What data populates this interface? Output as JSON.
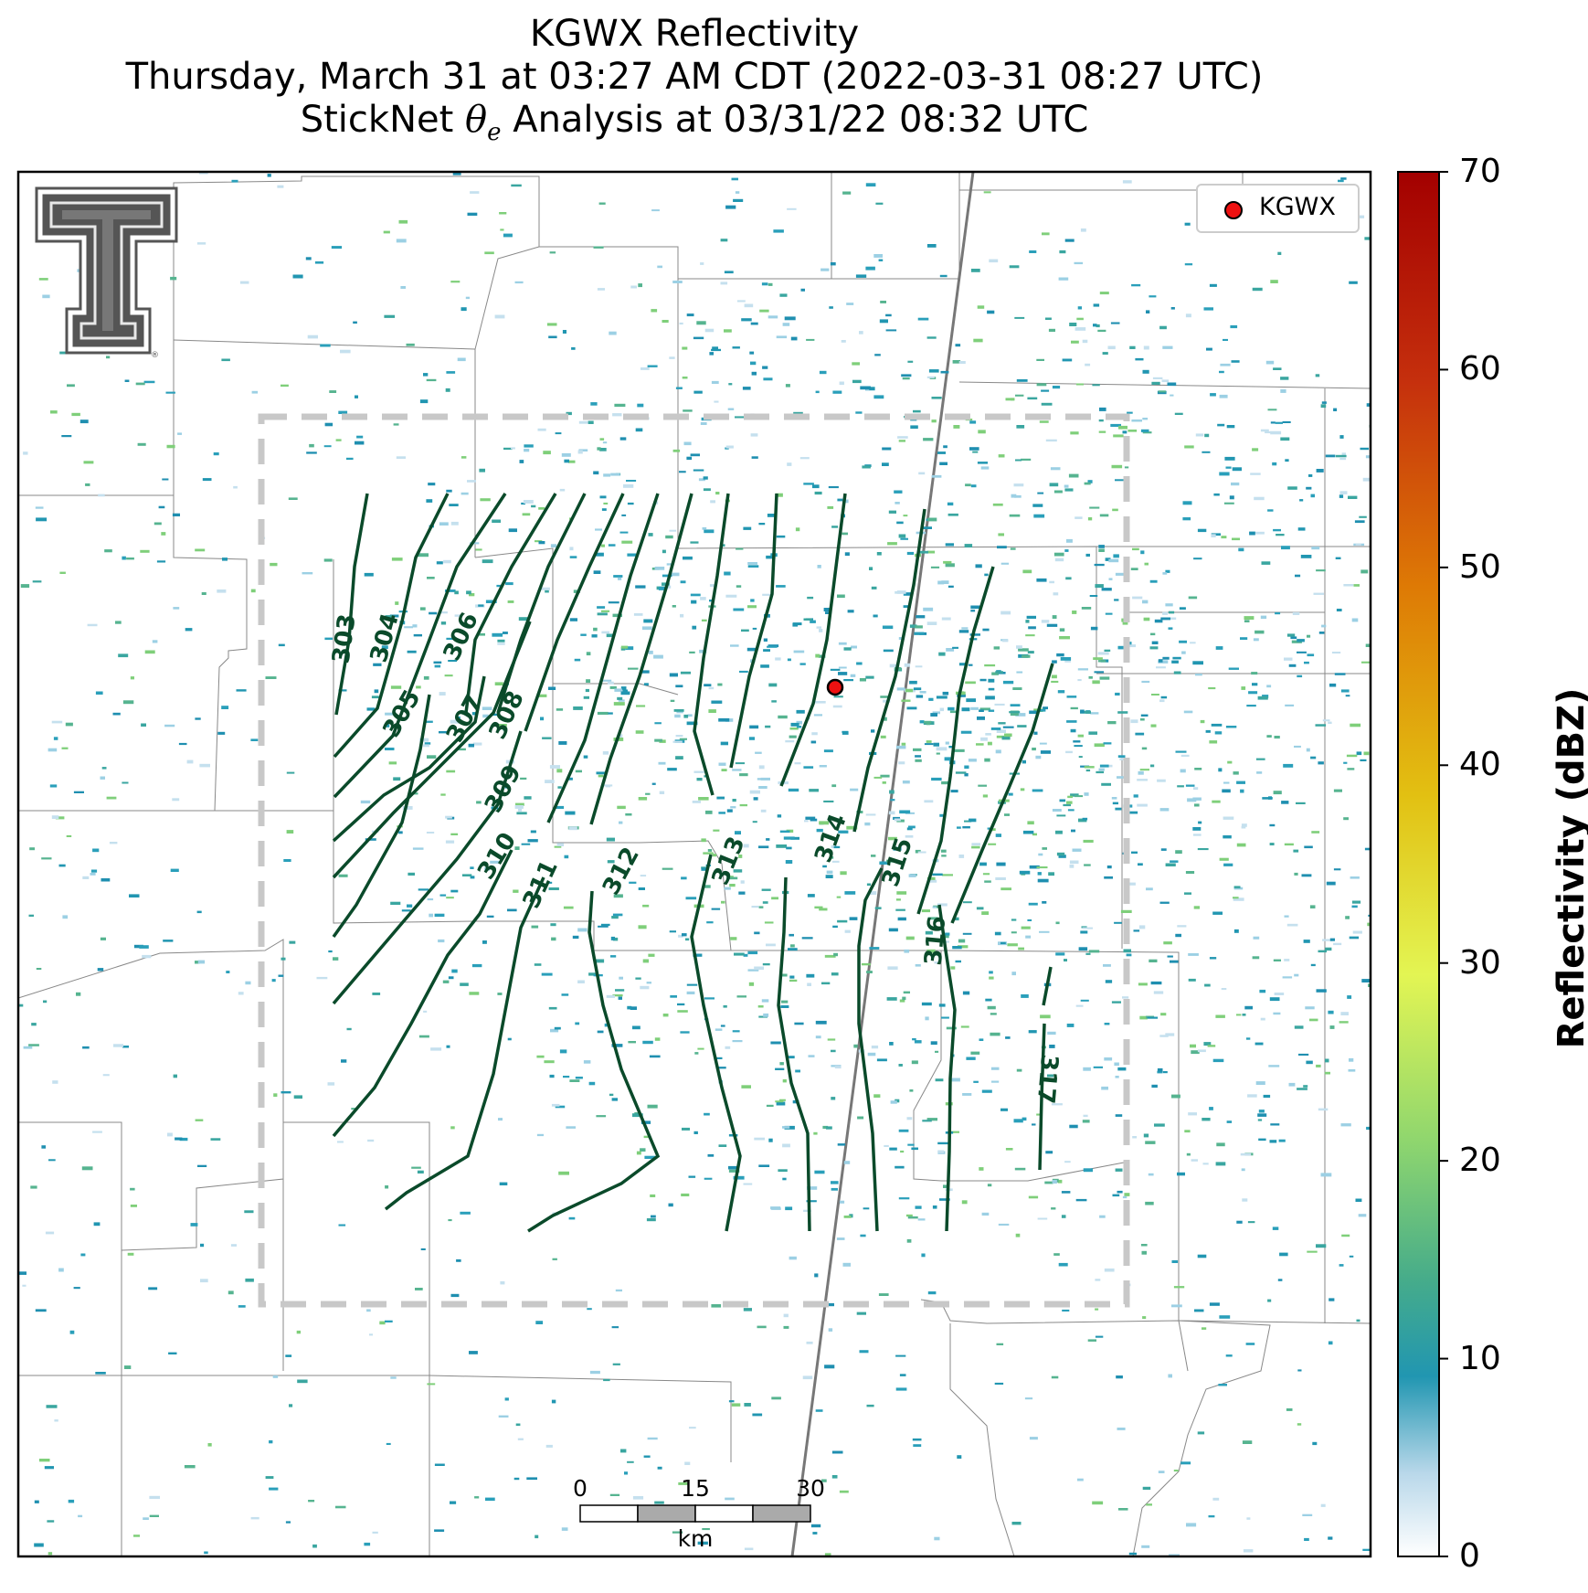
{
  "title": {
    "line1": "KGWX Reflectivity",
    "line2": "Thursday, March 31 at 03:27 AM CDT (2022-03-31 08:27 UTC)",
    "line3_prefix": "StickNet ",
    "line3_symbol": "θ",
    "line3_subscript": "e",
    "line3_suffix": " Analysis at 03/31/22 08:32 UTC"
  },
  "legend": {
    "label": "KGWX",
    "marker_color": "#ee1111"
  },
  "colorbar": {
    "label": "Reflectivity (dBZ)",
    "min": 0,
    "max": 70,
    "ticks": [
      "0",
      "10",
      "20",
      "30",
      "40",
      "50",
      "60",
      "70"
    ],
    "colors": [
      "#ffffff",
      "#b9d8ea",
      "#2196b1",
      "#46ac8a",
      "#8fd66e",
      "#e3f553",
      "#e2c012",
      "#de7a05",
      "#c52f0d",
      "#a30000"
    ]
  },
  "scale_bar": {
    "labels": [
      "0",
      "15",
      "30"
    ],
    "unit": "km"
  },
  "contour_color": "#0a4a2a",
  "contour_labels": [
    "303",
    "304",
    "305",
    "306",
    "307",
    "308",
    "309",
    "310",
    "311",
    "312",
    "313",
    "314",
    "315",
    "316",
    "317"
  ],
  "logo": "texas-tech-double-t-logo"
}
